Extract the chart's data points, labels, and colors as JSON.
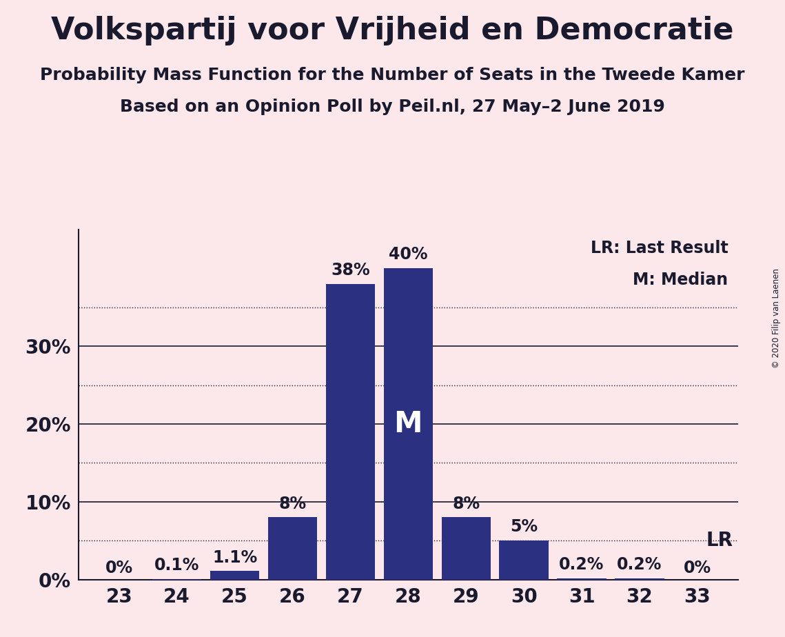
{
  "title": "Volkspartij voor Vrijheid en Democratie",
  "subtitle1": "Probability Mass Function for the Number of Seats in the Tweede Kamer",
  "subtitle2": "Based on an Opinion Poll by Peil.nl, 27 May–2 June 2019",
  "copyright": "© 2020 Filip van Laenen",
  "categories": [
    23,
    24,
    25,
    26,
    27,
    28,
    29,
    30,
    31,
    32,
    33
  ],
  "values": [
    0.0,
    0.1,
    1.1,
    8.0,
    38.0,
    40.0,
    8.0,
    5.0,
    0.2,
    0.2,
    0.0
  ],
  "bar_color": "#2b3080",
  "background_color": "#fce8ea",
  "text_color": "#1a1a2e",
  "bar_labels": [
    "0%",
    "0.1%",
    "1.1%",
    "8%",
    "38%",
    "40%",
    "8%",
    "5%",
    "0.2%",
    "0.2%",
    "0%"
  ],
  "median_bar": 28,
  "median_label": "M",
  "lr_value": 5.0,
  "lr_label": "LR",
  "legend_lr": "LR: Last Result",
  "legend_m": "M: Median",
  "yticks": [
    0,
    10,
    20,
    30
  ],
  "ytick_labels": [
    "0%",
    "10%",
    "20%",
    "30%"
  ],
  "dotted_grid": [
    5,
    15,
    25,
    35
  ],
  "ylim": [
    0,
    45
  ],
  "title_fontsize": 32,
  "subtitle_fontsize": 18,
  "axis_fontsize": 20,
  "bar_label_fontsize": 17
}
